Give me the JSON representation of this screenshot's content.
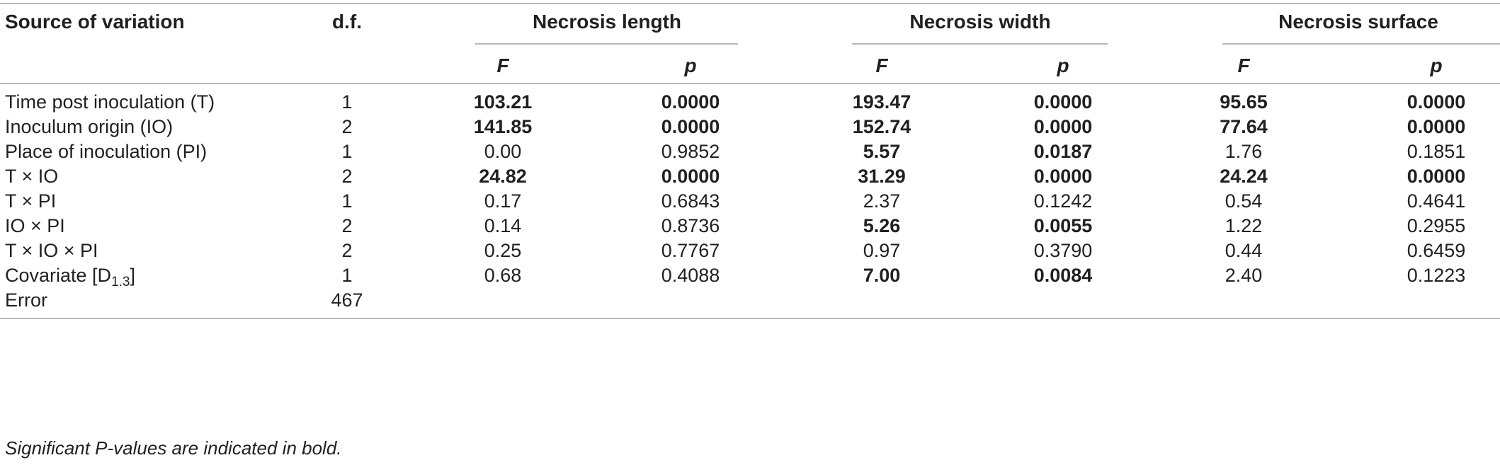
{
  "table": {
    "headers": {
      "source": "Source of variation",
      "df": "d.f.",
      "groups": [
        "Necrosis length",
        "Necrosis width",
        "Necrosis surface"
      ],
      "stat_f": "F",
      "stat_p": "p"
    },
    "rows": [
      {
        "source": "Time post inoculation (T)",
        "df": "1",
        "values": [
          {
            "F": "103.21",
            "p": "0.0000",
            "sig": true
          },
          {
            "F": "193.47",
            "p": "0.0000",
            "sig": true
          },
          {
            "F": "95.65",
            "p": "0.0000",
            "sig": true
          }
        ]
      },
      {
        "source": "Inoculum origin (IO)",
        "df": "2",
        "values": [
          {
            "F": "141.85",
            "p": "0.0000",
            "sig": true
          },
          {
            "F": "152.74",
            "p": "0.0000",
            "sig": true
          },
          {
            "F": "77.64",
            "p": "0.0000",
            "sig": true
          }
        ]
      },
      {
        "source": "Place of inoculation (PI)",
        "df": "1",
        "values": [
          {
            "F": "0.00",
            "p": "0.9852",
            "sig": false
          },
          {
            "F": "5.57",
            "p": "0.0187",
            "sig": true
          },
          {
            "F": "1.76",
            "p": "0.1851",
            "sig": false
          }
        ]
      },
      {
        "source": "T × IO",
        "df": "2",
        "values": [
          {
            "F": "24.82",
            "p": "0.0000",
            "sig": true
          },
          {
            "F": "31.29",
            "p": "0.0000",
            "sig": true
          },
          {
            "F": "24.24",
            "p": "0.0000",
            "sig": true
          }
        ]
      },
      {
        "source": "T × PI",
        "df": "1",
        "values": [
          {
            "F": "0.17",
            "p": "0.6843",
            "sig": false
          },
          {
            "F": "2.37",
            "p": "0.1242",
            "sig": false
          },
          {
            "F": "0.54",
            "p": "0.4641",
            "sig": false
          }
        ]
      },
      {
        "source": "IO × PI",
        "df": "2",
        "values": [
          {
            "F": "0.14",
            "p": "0.8736",
            "sig": false
          },
          {
            "F": "5.26",
            "p": "0.0055",
            "sig": true
          },
          {
            "F": "1.22",
            "p": "0.2955",
            "sig": false
          }
        ]
      },
      {
        "source": "T × IO × PI",
        "df": "2",
        "values": [
          {
            "F": "0.25",
            "p": "0.7767",
            "sig": false
          },
          {
            "F": "0.97",
            "p": "0.3790",
            "sig": false
          },
          {
            "F": "0.44",
            "p": "0.6459",
            "sig": false
          }
        ]
      },
      {
        "source": "Covariate [D",
        "source_sub": "1.3",
        "source_suffix": "]",
        "df": "1",
        "values": [
          {
            "F": "0.68",
            "p": "0.4088",
            "sig": false
          },
          {
            "F": "7.00",
            "p": "0.0084",
            "sig": true
          },
          {
            "F": "2.40",
            "p": "0.1223",
            "sig": false
          }
        ]
      },
      {
        "source": "Error",
        "df": "467",
        "values": []
      }
    ],
    "footnote": "Significant P-values are indicated in bold."
  }
}
